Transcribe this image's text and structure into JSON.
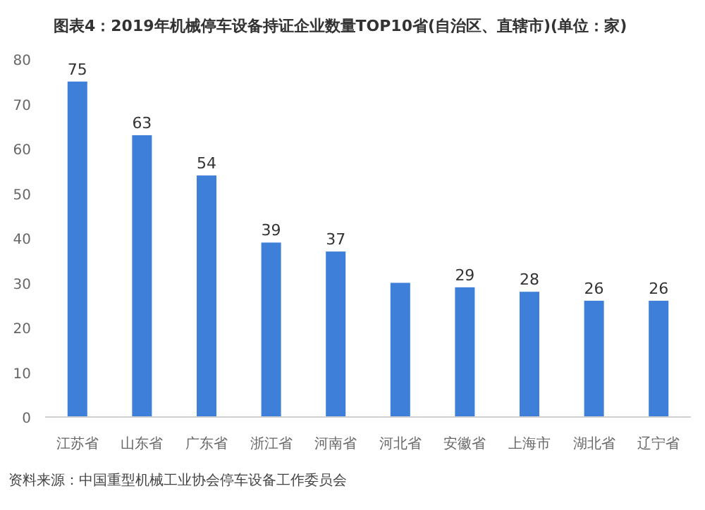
{
  "chart_data": {
    "type": "bar",
    "title": "图表4：2019年机械停车设备持证企业数量TOP10省(自治区、直辖市)(单位：家)",
    "categories": [
      "江苏省",
      "山东省",
      "广东省",
      "浙江省",
      "河南省",
      "河北省",
      "安徽省",
      "上海市",
      "湖北省",
      "辽宁省"
    ],
    "values": [
      75,
      63,
      54,
      39,
      37,
      30,
      29,
      28,
      26,
      26
    ],
    "value_labels": [
      "75",
      "63",
      "54",
      "39",
      "37",
      null,
      "29",
      "28",
      "26",
      "26"
    ],
    "color": "#3d7fd9",
    "ylim": [
      0,
      80
    ],
    "yticks": [
      0,
      10,
      20,
      30,
      40,
      50,
      60,
      70,
      80
    ],
    "grid": false,
    "annotations": [
      "资料来源：中国重型机械工业协会停车设备工作委员会"
    ]
  }
}
